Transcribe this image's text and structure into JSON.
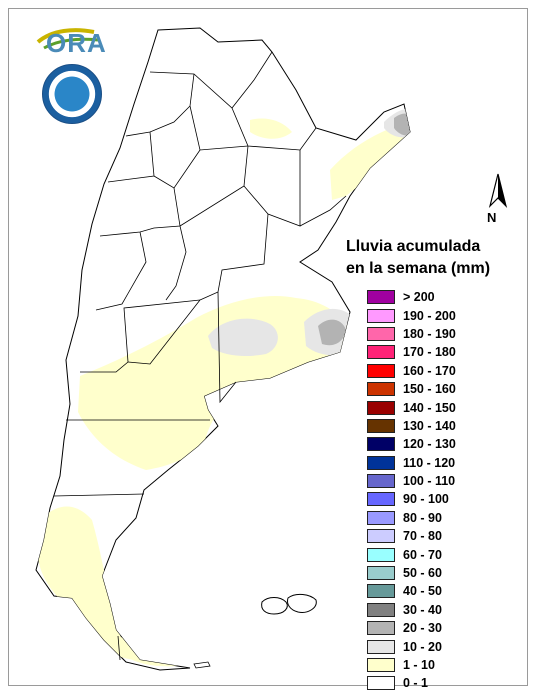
{
  "logo": {
    "text": "ORA"
  },
  "north_arrow": {
    "label": "N"
  },
  "legend": {
    "title_line1": "Lluvia acumulada",
    "title_line2": "en la semana (mm)",
    "classes": [
      {
        "label": "> 200",
        "color": "#a000a0"
      },
      {
        "label": "190 - 200",
        "color": "#ff99ff"
      },
      {
        "label": "180 - 190",
        "color": "#ff66aa"
      },
      {
        "label": "170 - 180",
        "color": "#ff2277"
      },
      {
        "label": "160 - 170",
        "color": "#ff0000"
      },
      {
        "label": "150 - 160",
        "color": "#cc3300"
      },
      {
        "label": "140 - 150",
        "color": "#990000"
      },
      {
        "label": "130 - 140",
        "color": "#663300"
      },
      {
        "label": "120 - 130",
        "color": "#000066"
      },
      {
        "label": "110 - 120",
        "color": "#003399"
      },
      {
        "label": "100 - 110",
        "color": "#6666cc"
      },
      {
        "label": "90 - 100",
        "color": "#6666ff"
      },
      {
        "label": "80 - 90",
        "color": "#9999ff"
      },
      {
        "label": "70 - 80",
        "color": "#ccccff"
      },
      {
        "label": "60 - 70",
        "color": "#99ffff"
      },
      {
        "label": "50 - 60",
        "color": "#99cccc"
      },
      {
        "label": "40 - 50",
        "color": "#669999"
      },
      {
        "label": "30 - 40",
        "color": "#808080"
      },
      {
        "label": "20 - 30",
        "color": "#b3b3b3"
      },
      {
        "label": "10 - 20",
        "color": "#e6e6e6"
      },
      {
        "label": "1 - 10",
        "color": "#ffffcc"
      },
      {
        "label": "0 - 1",
        "color": "#ffffff"
      }
    ]
  }
}
